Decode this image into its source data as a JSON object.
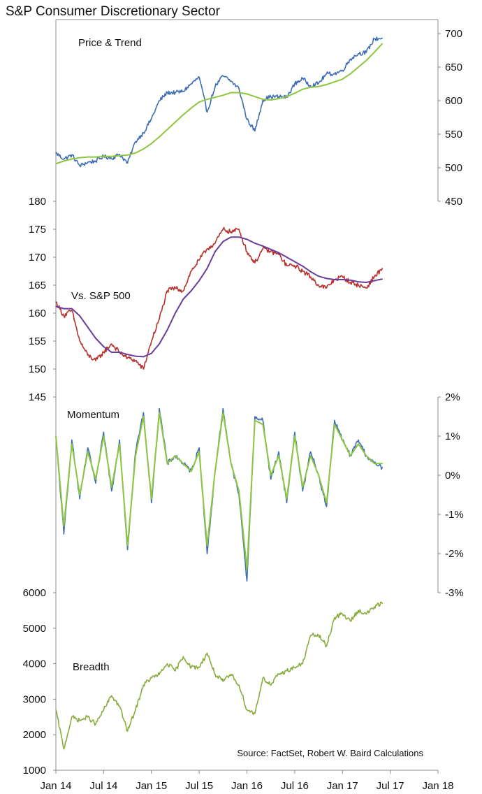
{
  "title": "S&P Consumer Discretionary Sector",
  "source_note": "Source: FactSet, Robert W. Baird Calculations",
  "colors": {
    "price": "#3f6db5",
    "trend": "#8dc63f",
    "relative": "#b7312c",
    "relative_trend": "#6a3d9a",
    "momentum_raw": "#3f6db5",
    "momentum_smooth": "#8dc63f",
    "breadth": "#8aac3e",
    "axis": "#8c8c8c"
  },
  "x_axis": {
    "ticks": [
      "Jan 14",
      "Jul 14",
      "Jan 15",
      "Jul 15",
      "Jan 16",
      "Jul 16",
      "Jan 17",
      "Jul 17",
      "Jan 18"
    ],
    "range": [
      "2014-01",
      "2018-01"
    ]
  },
  "chart_data": [
    {
      "type": "line",
      "label": "Price & Trend",
      "y_axis_side": "right",
      "ylim": [
        450,
        700
      ],
      "yticks": [
        "700",
        "650",
        "600",
        "550",
        "500",
        "450"
      ],
      "ytick_values": [
        700,
        650,
        600,
        550,
        500,
        450
      ],
      "x": [
        "2014-01",
        "2014-02",
        "2014-03",
        "2014-04",
        "2014-05",
        "2014-06",
        "2014-07",
        "2014-08",
        "2014-09",
        "2014-10",
        "2014-11",
        "2014-12",
        "2015-01",
        "2015-02",
        "2015-03",
        "2015-04",
        "2015-05",
        "2015-06",
        "2015-07",
        "2015-08",
        "2015-09",
        "2015-10",
        "2015-11",
        "2015-12",
        "2016-01",
        "2016-02",
        "2016-03",
        "2016-04",
        "2016-05",
        "2016-06",
        "2016-07",
        "2016-08",
        "2016-09",
        "2016-10",
        "2016-11",
        "2016-12",
        "2017-01",
        "2017-02",
        "2017-03",
        "2017-04",
        "2017-05",
        "2017-06"
      ],
      "series": [
        {
          "key": "price",
          "values": [
            522,
            513,
            519,
            503,
            508,
            510,
            517,
            514,
            520,
            507,
            539,
            552,
            573,
            600,
            612,
            612,
            614,
            625,
            635,
            583,
            621,
            637,
            629,
            618,
            572,
            555,
            601,
            606,
            606,
            605,
            625,
            633,
            622,
            626,
            640,
            640,
            645,
            662,
            670,
            672,
            692,
            693
          ]
        },
        {
          "key": "trend",
          "values": [
            506,
            510,
            513,
            515,
            516,
            516,
            517,
            517,
            518,
            519,
            522,
            528,
            536,
            546,
            557,
            568,
            579,
            589,
            598,
            602,
            605,
            608,
            612,
            612,
            610,
            606,
            602,
            601,
            603,
            606,
            611,
            617,
            620,
            621,
            624,
            628,
            632,
            640,
            650,
            660,
            672,
            685
          ]
        }
      ]
    },
    {
      "type": "line",
      "label": "Vs. S&P 500",
      "y_axis_side": "left",
      "ylim": [
        145,
        180
      ],
      "yticks": [
        "180",
        "175",
        "170",
        "165",
        "160",
        "155",
        "150",
        "145"
      ],
      "ytick_values": [
        180,
        175,
        170,
        165,
        160,
        155,
        150,
        145
      ],
      "x": [
        "2014-01",
        "2014-02",
        "2014-03",
        "2014-04",
        "2014-05",
        "2014-06",
        "2014-07",
        "2014-08",
        "2014-09",
        "2014-10",
        "2014-11",
        "2014-12",
        "2015-01",
        "2015-02",
        "2015-03",
        "2015-04",
        "2015-05",
        "2015-06",
        "2015-07",
        "2015-08",
        "2015-09",
        "2015-10",
        "2015-11",
        "2015-12",
        "2016-01",
        "2016-02",
        "2016-03",
        "2016-04",
        "2016-05",
        "2016-06",
        "2016-07",
        "2016-08",
        "2016-09",
        "2016-10",
        "2016-11",
        "2016-12",
        "2017-01",
        "2017-02",
        "2017-03",
        "2017-04",
        "2017-05",
        "2017-06"
      ],
      "series": [
        {
          "key": "relative",
          "values": [
            162,
            159.5,
            160.5,
            155,
            152.5,
            151.5,
            153,
            154.5,
            153,
            152,
            151.5,
            150,
            155,
            159,
            164,
            164.5,
            164,
            167.5,
            169.5,
            171.5,
            172.5,
            175,
            174.5,
            175,
            171,
            169,
            171.5,
            171,
            170.5,
            168.5,
            168.5,
            167.5,
            166.5,
            165,
            164.5,
            166,
            166.5,
            165.5,
            165,
            164.5,
            166.5,
            168
          ]
        },
        {
          "key": "relative_trend",
          "values": [
            161.2,
            160.8,
            160.8,
            159.5,
            157.5,
            155.5,
            154,
            153,
            153,
            152.6,
            152.3,
            152.2,
            152.8,
            154.5,
            157,
            160,
            162.5,
            164,
            165.8,
            168,
            171,
            172.8,
            173.6,
            173.6,
            173.2,
            172.5,
            172,
            171.4,
            170.8,
            170,
            169.2,
            168.4,
            167.4,
            166.6,
            166.2,
            166,
            166,
            165.9,
            165.6,
            165.5,
            165.8,
            166.1
          ]
        }
      ]
    },
    {
      "type": "line",
      "label": "Momentum",
      "y_axis_side": "right",
      "ylim": [
        -3,
        2
      ],
      "yticks": [
        "2%",
        "1%",
        "0%",
        "-1%",
        "-2%",
        "-3%"
      ],
      "ytick_values": [
        2,
        1,
        0,
        -1,
        -2,
        -3
      ],
      "x": [
        "2014-01",
        "2014-02",
        "2014-03",
        "2014-04",
        "2014-05",
        "2014-06",
        "2014-07",
        "2014-08",
        "2014-09",
        "2014-10",
        "2014-11",
        "2014-12",
        "2015-01",
        "2015-02",
        "2015-03",
        "2015-04",
        "2015-05",
        "2015-06",
        "2015-07",
        "2015-08",
        "2015-09",
        "2015-10",
        "2015-11",
        "2015-12",
        "2016-01",
        "2016-02",
        "2016-03",
        "2016-04",
        "2016-05",
        "2016-06",
        "2016-07",
        "2016-08",
        "2016-09",
        "2016-10",
        "2016-11",
        "2016-12",
        "2017-01",
        "2017-02",
        "2017-03",
        "2017-04",
        "2017-05",
        "2017-06"
      ],
      "series": [
        {
          "key": "momentum_raw",
          "values": [
            1.0,
            -1.5,
            0.9,
            -0.6,
            0.7,
            -0.2,
            1.1,
            -0.4,
            0.9,
            -1.9,
            0.6,
            1.6,
            -0.7,
            1.7,
            0.3,
            0.5,
            0.3,
            0.1,
            0.7,
            -2.0,
            0.1,
            1.7,
            0.3,
            -0.5,
            -2.7,
            1.5,
            1.4,
            -0.1,
            0.6,
            -0.7,
            1.1,
            -0.4,
            0.6,
            0.0,
            -0.8,
            1.4,
            0.9,
            0.5,
            0.9,
            0.5,
            0.3,
            0.2
          ]
        },
        {
          "key": "momentum_smooth",
          "values": [
            1.0,
            -1.3,
            0.8,
            -0.5,
            0.6,
            -0.1,
            1.0,
            -0.3,
            0.8,
            -1.8,
            0.5,
            1.5,
            -0.6,
            1.6,
            0.3,
            0.5,
            0.3,
            0.1,
            0.6,
            -1.8,
            0.1,
            1.6,
            0.3,
            -0.4,
            -2.4,
            1.4,
            1.3,
            0.0,
            0.5,
            -0.6,
            1.0,
            -0.3,
            0.5,
            0.0,
            -0.7,
            1.3,
            0.9,
            0.5,
            0.8,
            0.5,
            0.3,
            0.3
          ]
        }
      ]
    },
    {
      "type": "line",
      "label": "Breadth",
      "y_axis_side": "left",
      "ylim": [
        1000,
        6000
      ],
      "yticks": [
        "6000",
        "5000",
        "4000",
        "3000",
        "2000",
        "1000"
      ],
      "ytick_values": [
        6000,
        5000,
        4000,
        3000,
        2000,
        1000
      ],
      "x": [
        "2014-01",
        "2014-02",
        "2014-03",
        "2014-04",
        "2014-05",
        "2014-06",
        "2014-07",
        "2014-08",
        "2014-09",
        "2014-10",
        "2014-11",
        "2014-12",
        "2015-01",
        "2015-02",
        "2015-03",
        "2015-04",
        "2015-05",
        "2015-06",
        "2015-07",
        "2015-08",
        "2015-09",
        "2015-10",
        "2015-11",
        "2015-12",
        "2016-01",
        "2016-02",
        "2016-03",
        "2016-04",
        "2016-05",
        "2016-06",
        "2016-07",
        "2016-08",
        "2016-09",
        "2016-10",
        "2016-11",
        "2016-12",
        "2017-01",
        "2017-02",
        "2017-03",
        "2017-04",
        "2017-05",
        "2017-06"
      ],
      "series": [
        {
          "key": "breadth",
          "values": [
            2700,
            1600,
            2500,
            2400,
            2500,
            2300,
            2700,
            3100,
            2800,
            2100,
            2700,
            3400,
            3600,
            3700,
            4000,
            3800,
            4200,
            3900,
            3900,
            4300,
            3700,
            3500,
            3700,
            3400,
            2700,
            2600,
            3600,
            3400,
            3700,
            3800,
            3900,
            4000,
            4800,
            4800,
            4500,
            5300,
            5400,
            5200,
            5500,
            5400,
            5600,
            5700
          ]
        }
      ]
    }
  ]
}
